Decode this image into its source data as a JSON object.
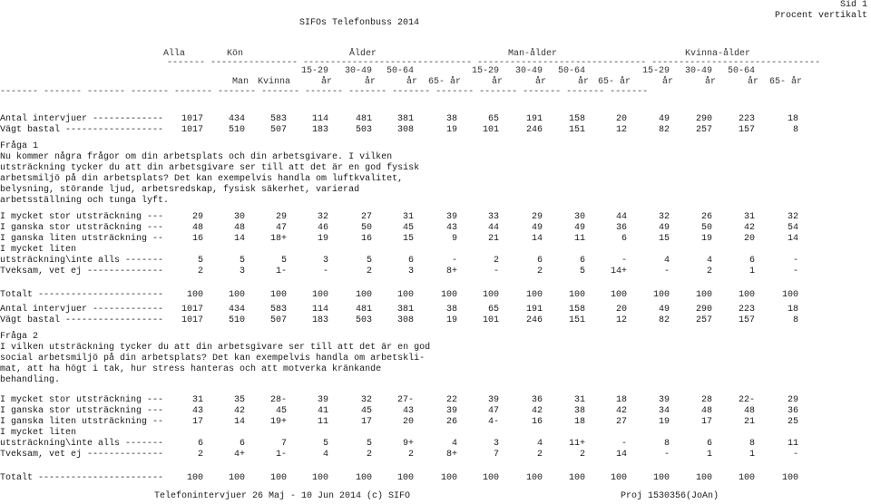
{
  "header": {
    "title": "SIFOs Telefonbuss 2014",
    "page": "Sid 1",
    "mode": "Procent vertikalt"
  },
  "groups": [
    "Alla",
    "Kön",
    "Ålder",
    "Man-ålder",
    "Kvinna-ålder"
  ],
  "dash_line": "------- ---------------- ------------------------------- ------------------------------- -------------------------------",
  "dash_line2": "------- ------- ------- ------- ------- ------- ------- ------- ------- ------- ------- ------- ------- ------- -------",
  "sub1": [
    "",
    "",
    "",
    "15-29",
    "30-49",
    "50-64",
    "",
    "15-29",
    "30-49",
    "50-64",
    "",
    "15-29",
    "30-49",
    "50-64",
    ""
  ],
  "sub2": [
    "",
    "Man",
    "Kvinna",
    "år",
    "år",
    "år",
    "65- år",
    "år",
    "år",
    "år",
    "65- år",
    "år",
    "år",
    "år",
    "65- år"
  ],
  "blocks": [
    {
      "base": [
        {
          "label": "Antal intervjuer -------------",
          "values": [
            "1017",
            "434",
            "583",
            "114",
            "481",
            "381",
            "38",
            "65",
            "191",
            "158",
            "20",
            "49",
            "290",
            "223",
            "18"
          ]
        },
        {
          "label": "Vägt bastal ------------------",
          "values": [
            "1017",
            "510",
            "507",
            "183",
            "503",
            "308",
            "19",
            "101",
            "246",
            "151",
            "12",
            "82",
            "257",
            "157",
            "8"
          ]
        }
      ],
      "question_title": "Fråga 1",
      "question_lines": [
        "Nu kommer några frågor om din arbetsplats och din arbetsgivare. I vilken",
        "utsträckning tycker du att din arbetsgivare ser till att det är en god fysisk",
        "arbetsmiljö på din arbetsplats? Det kan exempelvis handla om luftkvalitet,",
        "belysning, störande ljud, arbetsredskap, fysisk säkerhet, varierad",
        "arbetsställning och tunga lyft."
      ],
      "answers": [
        {
          "label": "I mycket stor utsträckning ---",
          "values": [
            "29",
            "30",
            "29",
            "32",
            "27",
            "31",
            "39",
            "33",
            "29",
            "30",
            "44",
            "32",
            "26",
            "31",
            "32"
          ]
        },
        {
          "label": "I ganska stor utsträckning ---",
          "values": [
            "48",
            "48",
            "47",
            "46",
            "50",
            "45",
            "43",
            "44",
            "49",
            "49",
            "36",
            "49",
            "50",
            "42",
            "54"
          ]
        },
        {
          "label": "I ganska liten utsträckning --",
          "values": [
            "16",
            "14",
            "18+",
            "19",
            "16",
            "15",
            "9",
            "21",
            "14",
            "11",
            "6",
            "15",
            "19",
            "20",
            "14"
          ]
        },
        {
          "label": "I mycket liten",
          "values": []
        },
        {
          "label": "utsträckning\\inte alls -------",
          "values": [
            "5",
            "5",
            "5",
            "3",
            "5",
            "6",
            "-",
            "2",
            "6",
            "6",
            "-",
            "4",
            "4",
            "6",
            "-"
          ]
        },
        {
          "label": "Tveksam, vet ej --------------",
          "values": [
            "2",
            "3",
            "1-",
            "-",
            "2",
            "3",
            "8+",
            "-",
            "2",
            "5",
            "14+",
            "-",
            "2",
            "1",
            "-"
          ]
        }
      ],
      "total": {
        "label": "Totalt -----------------------",
        "values": [
          "100",
          "100",
          "100",
          "100",
          "100",
          "100",
          "100",
          "100",
          "100",
          "100",
          "100",
          "100",
          "100",
          "100",
          "100"
        ]
      }
    },
    {
      "base": [
        {
          "label": "Antal intervjuer -------------",
          "values": [
            "1017",
            "434",
            "583",
            "114",
            "481",
            "381",
            "38",
            "65",
            "191",
            "158",
            "20",
            "49",
            "290",
            "223",
            "18"
          ]
        },
        {
          "label": "Vägt bastal ------------------",
          "values": [
            "1017",
            "510",
            "507",
            "183",
            "503",
            "308",
            "19",
            "101",
            "246",
            "151",
            "12",
            "82",
            "257",
            "157",
            "8"
          ]
        }
      ],
      "question_title": "Fråga 2",
      "question_lines": [
        "I vilken utsträckning tycker du att din arbetsgivare ser till att det är en god",
        "social arbetsmiljö på din arbetsplats? Det kan exempelvis handla om arbetskli-",
        "mat, att ha högt i tak, hur stress hanteras och att motverka kränkande",
        "behandling."
      ],
      "answers": [
        {
          "label": "I mycket stor utsträckning ---",
          "values": [
            "31",
            "35",
            "28-",
            "39",
            "32",
            "27-",
            "22",
            "39",
            "36",
            "31",
            "18",
            "39",
            "28",
            "22-",
            "29"
          ]
        },
        {
          "label": "I ganska stor utsträckning ---",
          "values": [
            "43",
            "42",
            "45",
            "41",
            "45",
            "43",
            "39",
            "47",
            "42",
            "38",
            "42",
            "34",
            "48",
            "48",
            "36"
          ]
        },
        {
          "label": "I ganska liten utsträckning --",
          "values": [
            "17",
            "14",
            "19+",
            "11",
            "17",
            "20",
            "26",
            "4-",
            "16",
            "18",
            "27",
            "19",
            "17",
            "21",
            "25"
          ]
        },
        {
          "label": "I mycket liten",
          "values": []
        },
        {
          "label": "utsträckning\\inte alls -------",
          "values": [
            "6",
            "6",
            "7",
            "5",
            "5",
            "9+",
            "4",
            "3",
            "4",
            "11+",
            "-",
            "8",
            "6",
            "8",
            "11"
          ]
        },
        {
          "label": "Tveksam, vet ej --------------",
          "values": [
            "2",
            "4+",
            "1-",
            "4",
            "2",
            "2",
            "8+",
            "7",
            "2",
            "2",
            "14",
            "-",
            "1",
            "1",
            "-"
          ]
        }
      ],
      "total": {
        "label": "Totalt -----------------------",
        "values": [
          "100",
          "100",
          "100",
          "100",
          "100",
          "100",
          "100",
          "100",
          "100",
          "100",
          "100",
          "100",
          "100",
          "100",
          "100"
        ]
      }
    }
  ],
  "footer": {
    "left": "Telefonintervjuer 26 Maj - 10 Jun 2014 (c) SIFO",
    "right": "Proj 1530356(JoAn)"
  }
}
